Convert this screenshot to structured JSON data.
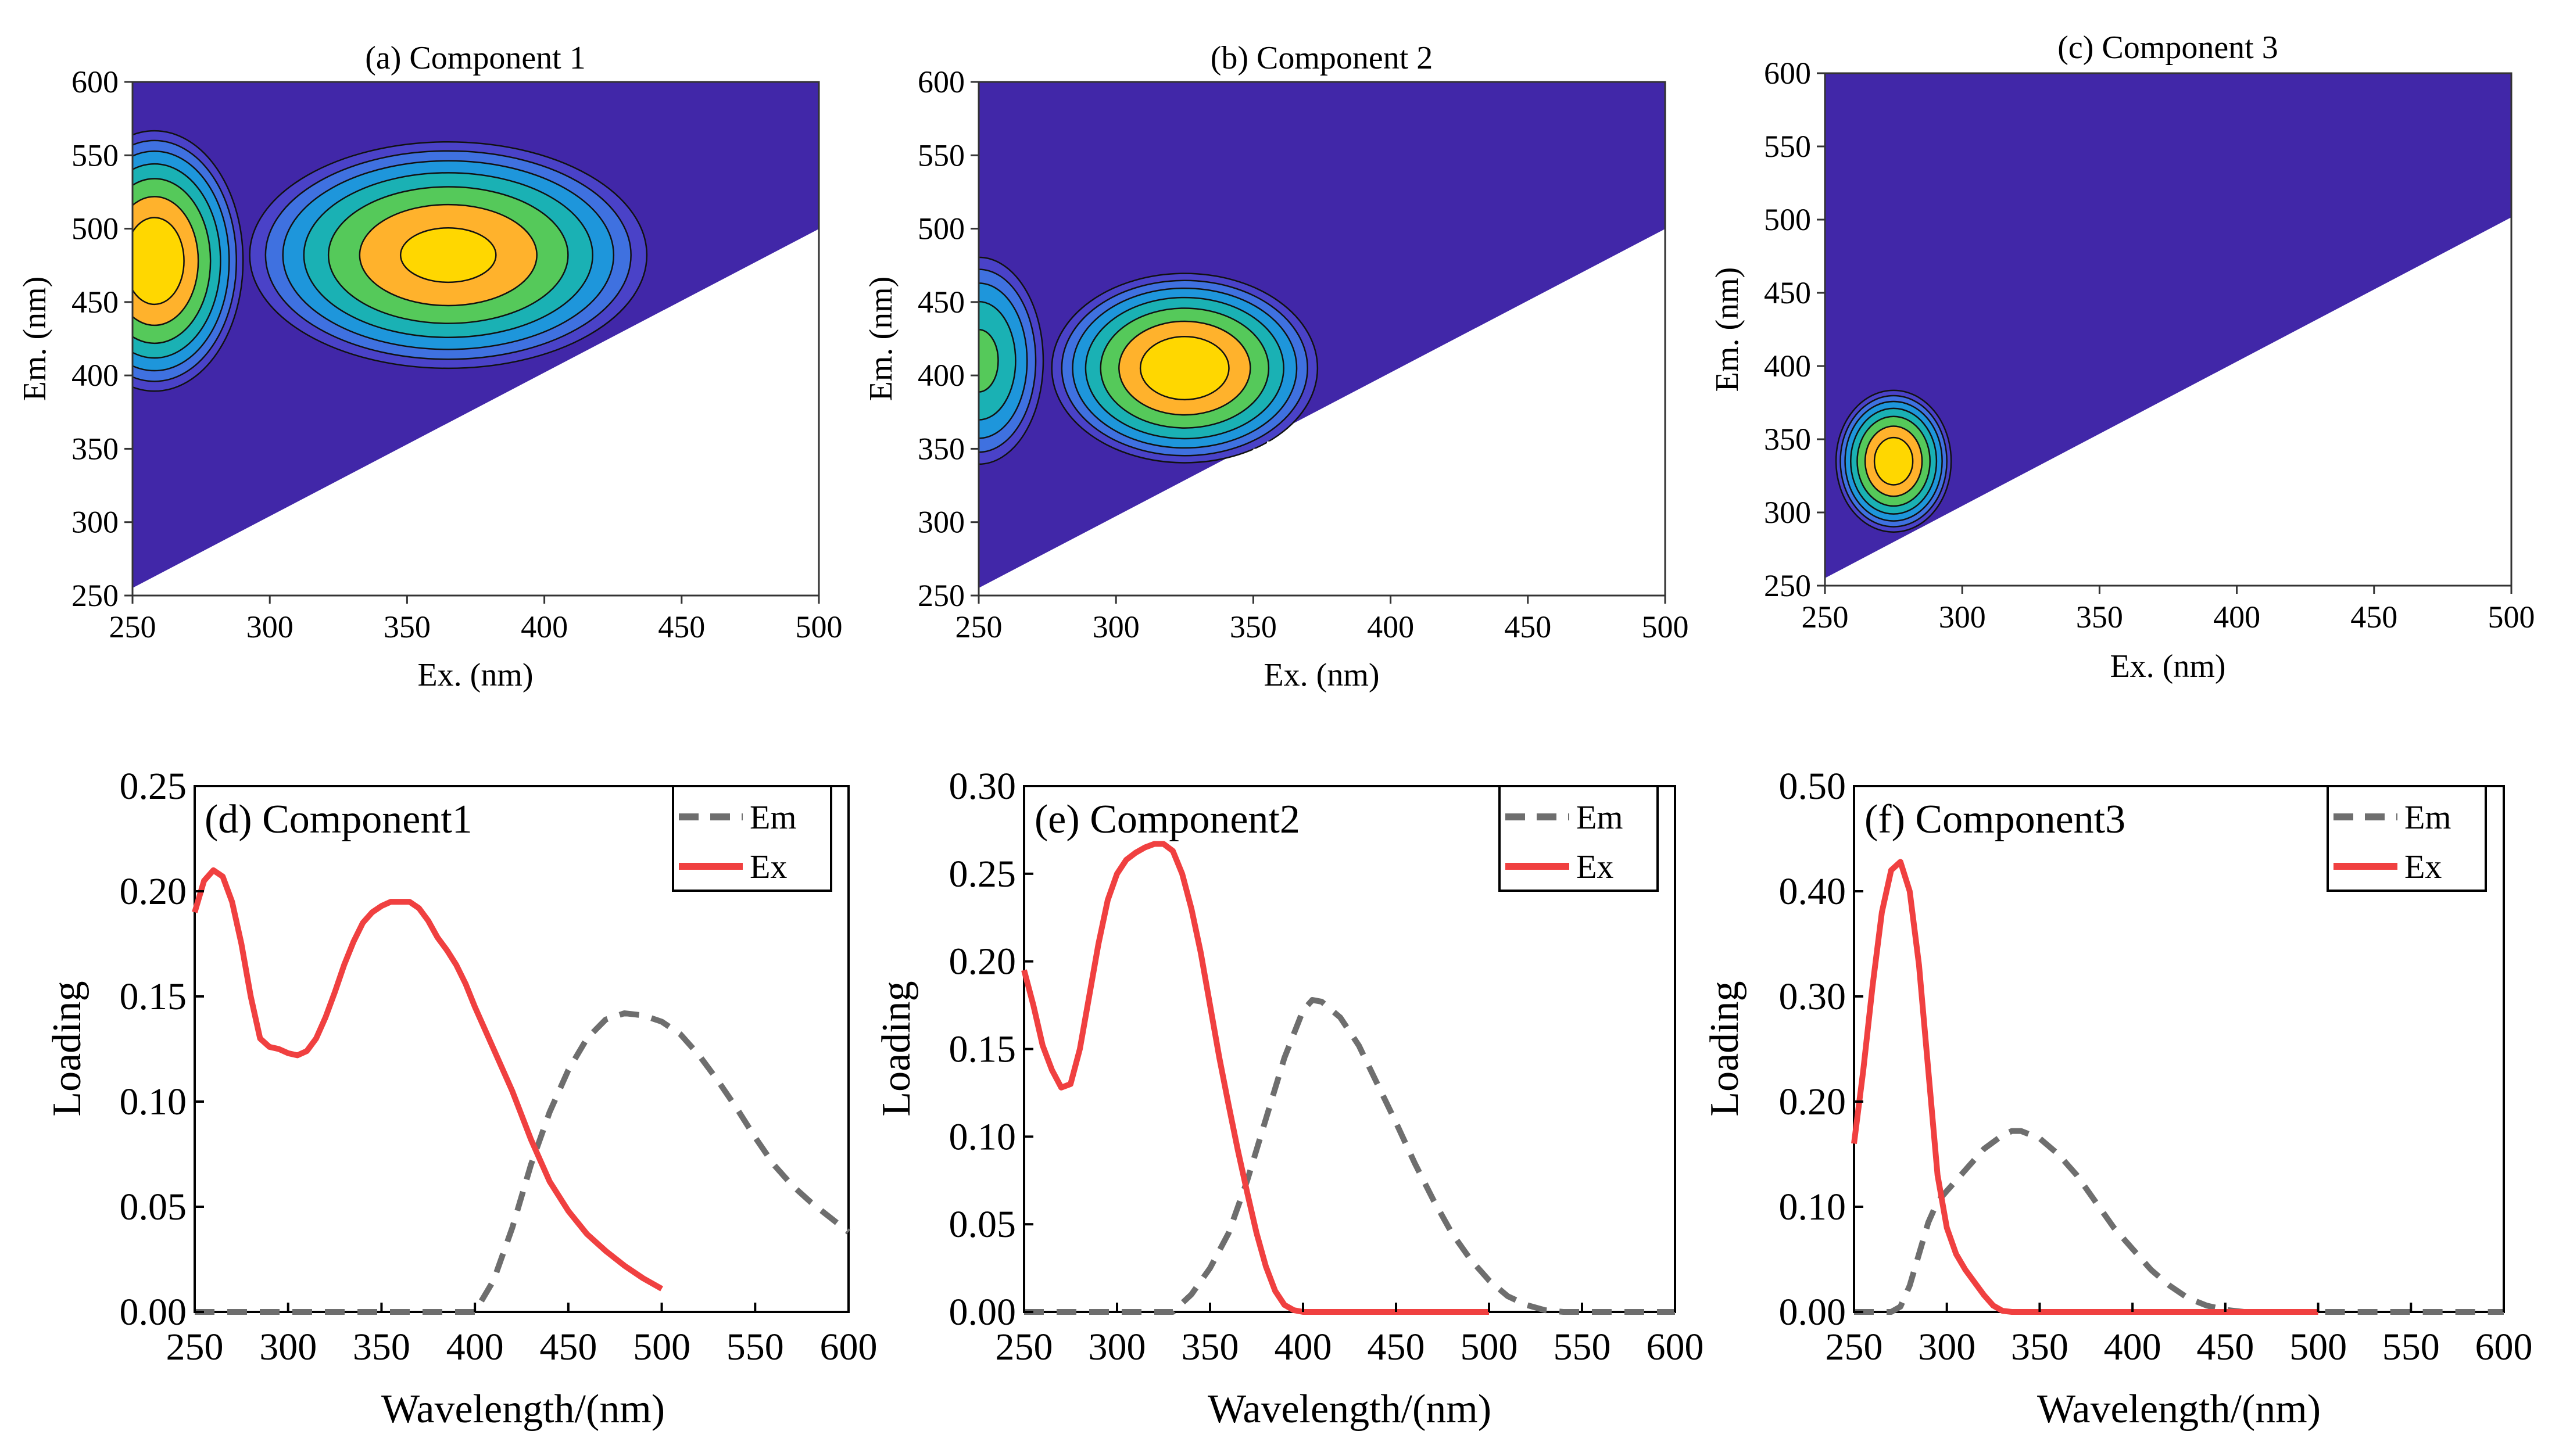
{
  "chart_data": [
    {
      "type": "heatmap",
      "id": "a",
      "title": "(a) Component 1",
      "xlabel": "Ex. (nm)",
      "ylabel": "Em. (nm)",
      "xlim": [
        250,
        500
      ],
      "ylim": [
        250,
        600
      ],
      "xticks": [
        250,
        300,
        350,
        400,
        450,
        500
      ],
      "yticks": [
        250,
        300,
        350,
        400,
        450,
        500,
        550,
        600
      ],
      "peaks": [
        {
          "ex": 258,
          "em": 478,
          "intensity": 1.0,
          "ex_width": 20,
          "em_width": 55
        },
        {
          "ex": 365,
          "em": 482,
          "intensity": 0.95,
          "ex_width": 45,
          "em_width": 48
        }
      ]
    },
    {
      "type": "heatmap",
      "id": "b",
      "title": "(b) Component 2",
      "xlabel": "Ex. (nm)",
      "ylabel": "Em. (nm)",
      "xlim": [
        250,
        500
      ],
      "ylim": [
        250,
        600
      ],
      "xticks": [
        250,
        300,
        350,
        400,
        450,
        500
      ],
      "yticks": [
        250,
        300,
        350,
        400,
        450,
        500,
        550,
        600
      ],
      "peaks": [
        {
          "ex": 325,
          "em": 405,
          "intensity": 1.0,
          "ex_width": 30,
          "em_width": 40
        },
        {
          "ex": 250,
          "em": 410,
          "intensity": 0.7,
          "ex_width": 15,
          "em_width": 45
        }
      ]
    },
    {
      "type": "heatmap",
      "id": "c",
      "title": "(c) Component 3",
      "xlabel": "Ex. (nm)",
      "ylabel": "Em. (nm)",
      "xlim": [
        250,
        500
      ],
      "ylim": [
        250,
        600
      ],
      "xticks": [
        250,
        300,
        350,
        400,
        450,
        500
      ],
      "yticks": [
        250,
        300,
        350,
        400,
        450,
        500,
        550,
        600
      ],
      "peaks": [
        {
          "ex": 275,
          "em": 335,
          "intensity": 1.0,
          "ex_width": 13,
          "em_width": 30
        }
      ]
    },
    {
      "type": "line",
      "id": "d",
      "title": "(d) Component1",
      "xlabel": "Wavelength/(nm)",
      "ylabel": "Loading",
      "xlim": [
        250,
        600
      ],
      "ylim": [
        0,
        0.25
      ],
      "xticks": [
        250,
        300,
        350,
        400,
        450,
        500,
        550,
        600
      ],
      "yticks": [
        "0.00",
        "0.05",
        "0.10",
        "0.15",
        "0.20",
        "0.25"
      ],
      "series": [
        {
          "name": "Em",
          "color": "#6e6e6e",
          "dashed": true,
          "x": [
            250,
            300,
            350,
            400,
            410,
            420,
            430,
            440,
            450,
            460,
            470,
            480,
            490,
            500,
            510,
            520,
            530,
            540,
            550,
            560,
            570,
            580,
            590,
            600
          ],
          "y": [
            0,
            0,
            0,
            0,
            0.015,
            0.04,
            0.07,
            0.095,
            0.115,
            0.13,
            0.139,
            0.142,
            0.141,
            0.138,
            0.132,
            0.122,
            0.11,
            0.097,
            0.083,
            0.07,
            0.06,
            0.052,
            0.045,
            0.038
          ]
        },
        {
          "name": "Ex",
          "color": "#f04040",
          "dashed": false,
          "x": [
            250,
            255,
            260,
            265,
            270,
            275,
            280,
            285,
            290,
            295,
            300,
            305,
            310,
            315,
            320,
            325,
            330,
            335,
            340,
            345,
            350,
            355,
            360,
            365,
            370,
            375,
            380,
            385,
            390,
            395,
            400,
            410,
            420,
            430,
            440,
            450,
            460,
            470,
            480,
            490,
            500
          ],
          "y": [
            0.19,
            0.205,
            0.21,
            0.207,
            0.195,
            0.175,
            0.15,
            0.13,
            0.126,
            0.125,
            0.123,
            0.122,
            0.124,
            0.13,
            0.14,
            0.152,
            0.165,
            0.176,
            0.185,
            0.19,
            0.193,
            0.195,
            0.195,
            0.195,
            0.192,
            0.186,
            0.178,
            0.172,
            0.165,
            0.156,
            0.145,
            0.125,
            0.105,
            0.082,
            0.062,
            0.048,
            0.037,
            0.029,
            0.022,
            0.016,
            0.011
          ]
        }
      ]
    },
    {
      "type": "line",
      "id": "e",
      "title": "(e) Component2",
      "xlabel": "Wavelength/(nm)",
      "ylabel": "Loading",
      "xlim": [
        250,
        600
      ],
      "ylim": [
        0,
        0.3
      ],
      "xticks": [
        250,
        300,
        350,
        400,
        450,
        500,
        550,
        600
      ],
      "yticks": [
        "0.00",
        "0.05",
        "0.10",
        "0.15",
        "0.20",
        "0.25",
        "0.30"
      ],
      "series": [
        {
          "name": "Em",
          "color": "#6e6e6e",
          "dashed": true,
          "x": [
            250,
            300,
            330,
            340,
            350,
            360,
            370,
            380,
            390,
            400,
            405,
            410,
            420,
            430,
            440,
            450,
            460,
            470,
            480,
            490,
            500,
            510,
            520,
            530,
            540,
            550,
            600
          ],
          "y": [
            0,
            0,
            0,
            0.01,
            0.025,
            0.045,
            0.075,
            0.11,
            0.145,
            0.172,
            0.178,
            0.177,
            0.168,
            0.152,
            0.13,
            0.108,
            0.085,
            0.064,
            0.045,
            0.03,
            0.018,
            0.009,
            0.004,
            0.001,
            0,
            0,
            0
          ]
        },
        {
          "name": "Ex",
          "color": "#f04040",
          "dashed": false,
          "x": [
            250,
            255,
            260,
            265,
            270,
            275,
            280,
            285,
            290,
            295,
            300,
            305,
            310,
            315,
            320,
            325,
            330,
            335,
            340,
            345,
            350,
            355,
            360,
            365,
            370,
            375,
            380,
            385,
            390,
            395,
            400,
            450,
            500
          ],
          "y": [
            0.195,
            0.175,
            0.152,
            0.138,
            0.128,
            0.13,
            0.15,
            0.18,
            0.21,
            0.235,
            0.25,
            0.258,
            0.262,
            0.265,
            0.267,
            0.267,
            0.263,
            0.25,
            0.23,
            0.205,
            0.175,
            0.145,
            0.118,
            0.092,
            0.068,
            0.045,
            0.026,
            0.012,
            0.004,
            0.001,
            0,
            0,
            0
          ]
        }
      ]
    },
    {
      "type": "line",
      "id": "f",
      "title": "(f) Component3",
      "xlabel": "Wavelength/(nm)",
      "ylabel": "Loading",
      "xlim": [
        250,
        600
      ],
      "ylim": [
        0,
        0.5
      ],
      "xticks": [
        250,
        300,
        350,
        400,
        450,
        500,
        550,
        600
      ],
      "yticks": [
        "0.00",
        "0.10",
        "0.20",
        "0.30",
        "0.40",
        "0.50"
      ],
      "series": [
        {
          "name": "Em",
          "color": "#6e6e6e",
          "dashed": true,
          "x": [
            250,
            270,
            275,
            280,
            285,
            290,
            295,
            300,
            310,
            320,
            330,
            335,
            340,
            350,
            360,
            370,
            380,
            390,
            400,
            410,
            420,
            430,
            440,
            450,
            460,
            500,
            600
          ],
          "y": [
            0,
            0,
            0.005,
            0.025,
            0.055,
            0.085,
            0.105,
            0.115,
            0.135,
            0.155,
            0.168,
            0.172,
            0.172,
            0.165,
            0.15,
            0.13,
            0.105,
            0.08,
            0.06,
            0.04,
            0.025,
            0.013,
            0.006,
            0.002,
            0,
            0,
            0
          ]
        },
        {
          "name": "Ex",
          "color": "#f04040",
          "dashed": false,
          "x": [
            250,
            255,
            260,
            265,
            270,
            275,
            280,
            285,
            290,
            295,
            300,
            305,
            310,
            315,
            320,
            325,
            330,
            335,
            340,
            400,
            500
          ],
          "y": [
            0.16,
            0.23,
            0.31,
            0.38,
            0.42,
            0.428,
            0.4,
            0.33,
            0.23,
            0.13,
            0.08,
            0.055,
            0.04,
            0.028,
            0.016,
            0.006,
            0.001,
            0,
            0,
            0,
            0
          ]
        }
      ]
    }
  ]
}
